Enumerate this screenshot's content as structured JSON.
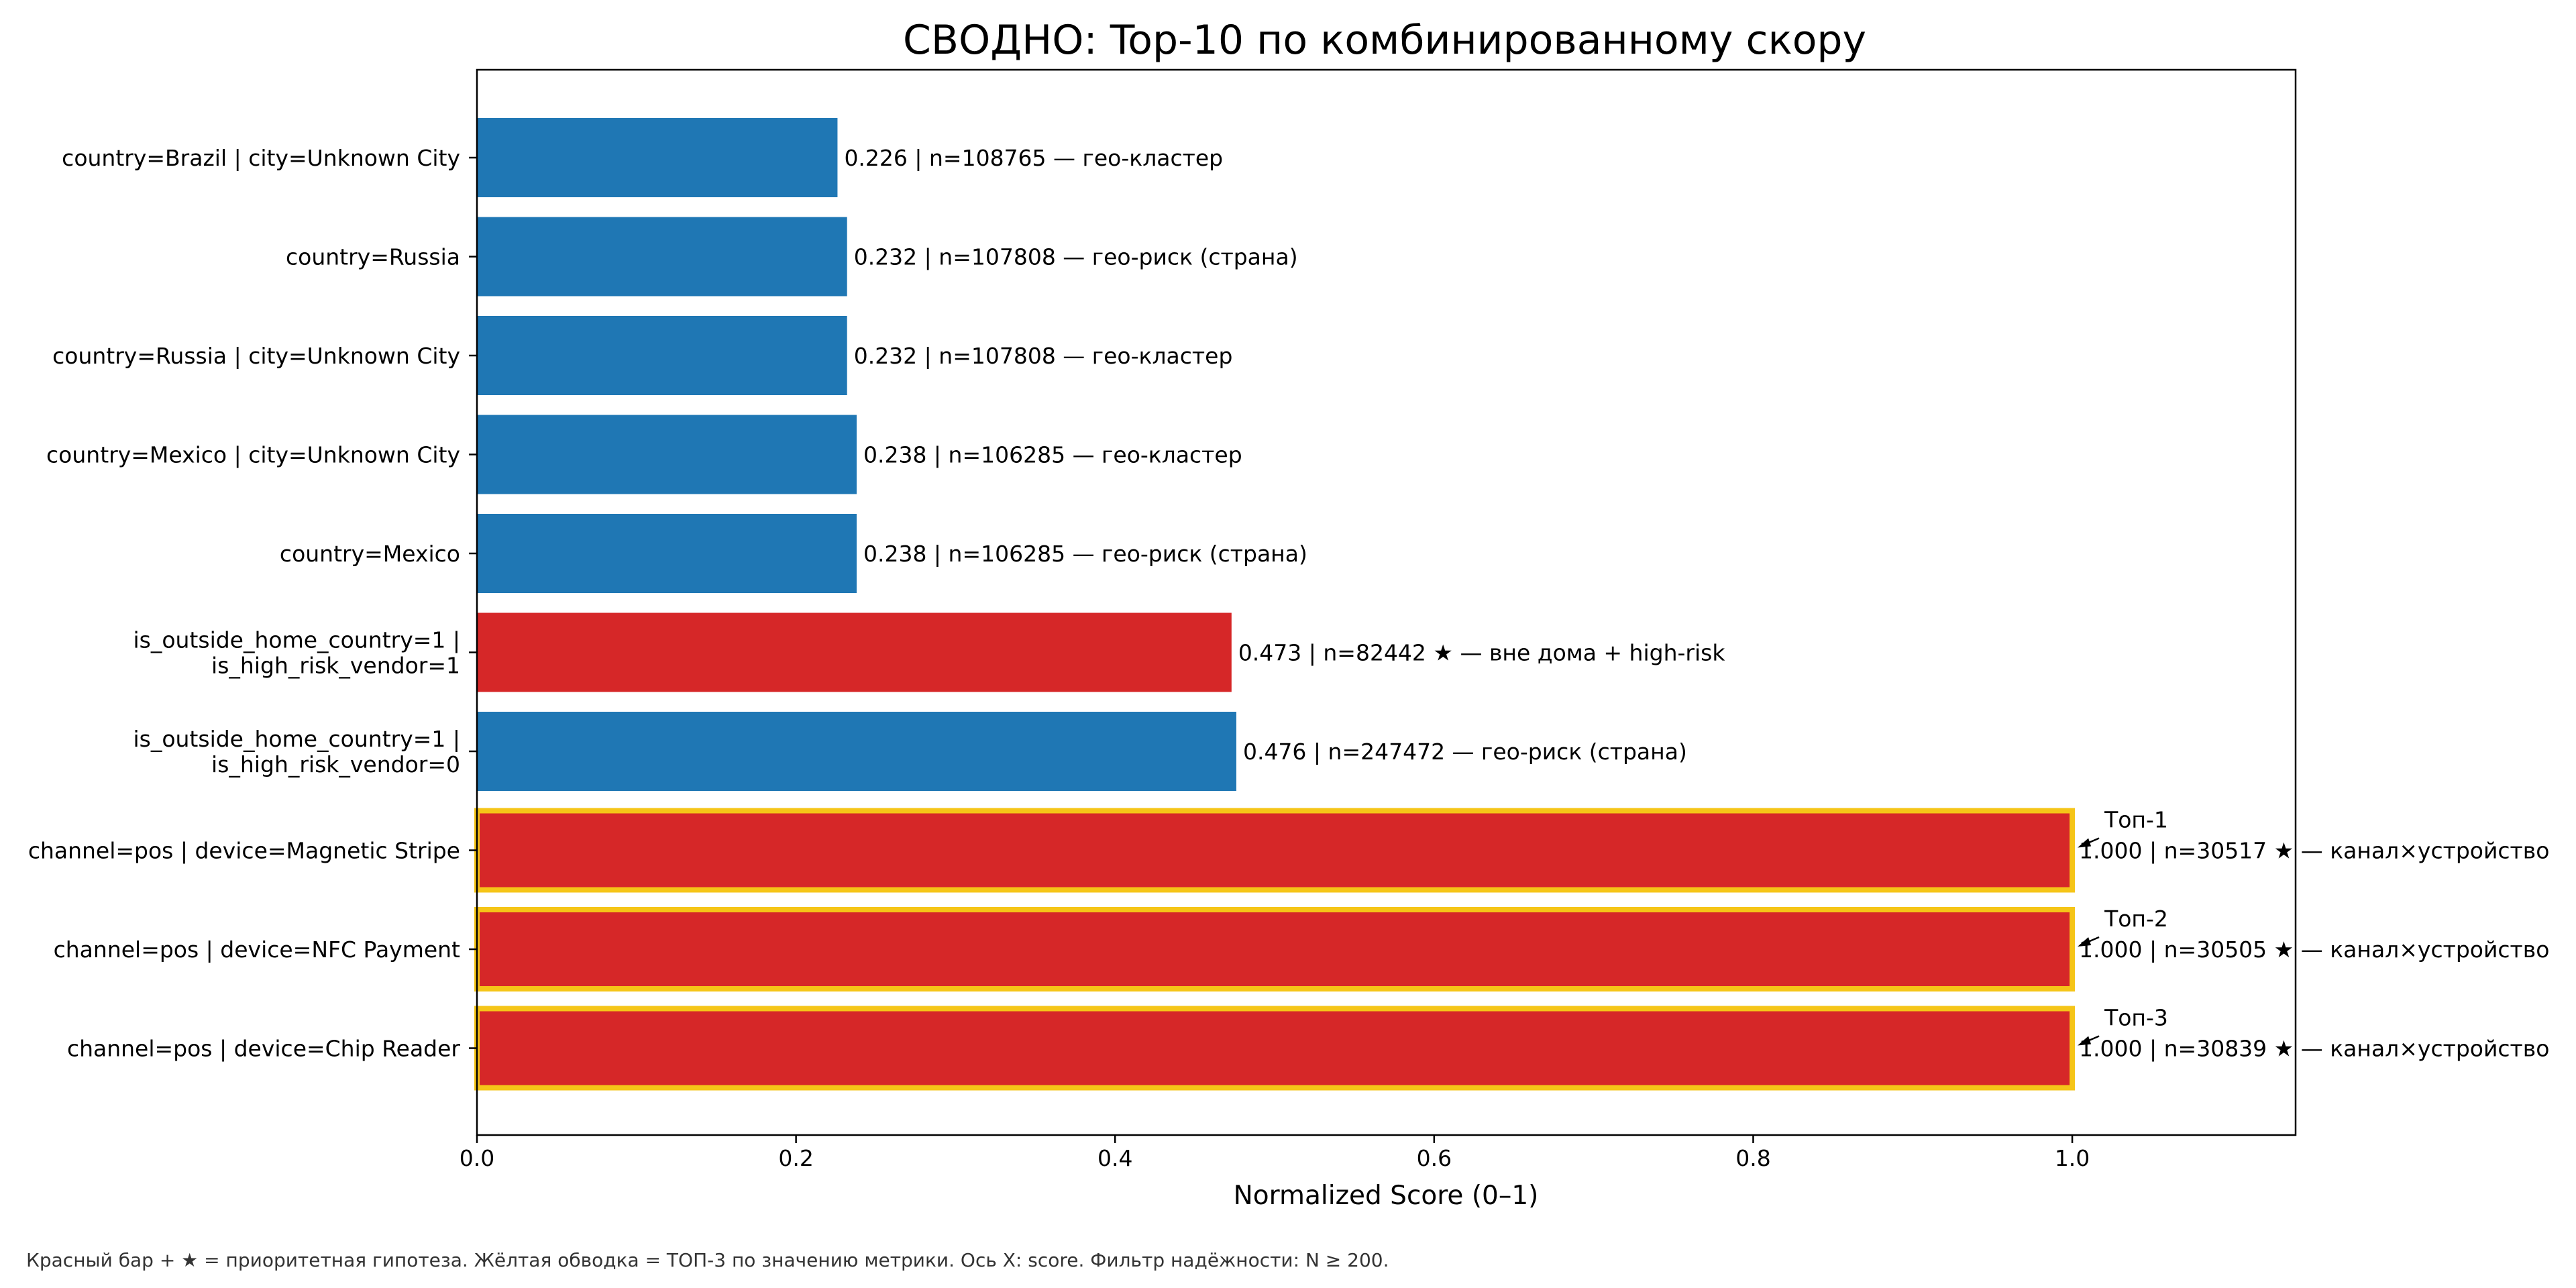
{
  "chart_data": {
    "type": "bar",
    "orientation": "horizontal",
    "title": "СВОДНО: Top-10 по комбинированному скору",
    "xlabel": "Normalized Score (0–1)",
    "ylabel": "",
    "xlim": [
      0,
      1.14
    ],
    "xticks": [
      "0.0",
      "0.2",
      "0.4",
      "0.6",
      "0.8",
      "1.0"
    ],
    "grid": false,
    "legend": "none",
    "colors": {
      "priority": "#d62728",
      "normal": "#1f77b4",
      "top3_outline": "#f5c518"
    },
    "categories": [
      "country=Brazil | city=Unknown City",
      "country=Russia",
      "country=Russia | city=Unknown City",
      "country=Mexico | city=Unknown City",
      "country=Mexico",
      "is_outside_home_country=1 |\nis_high_risk_vendor=1",
      "is_outside_home_country=1 |\nis_high_risk_vendor=0",
      "channel=pos | device=Magnetic Stripe",
      "channel=pos | device=NFC Payment",
      "channel=pos | device=Chip Reader"
    ],
    "values": [
      0.226,
      0.232,
      0.232,
      0.238,
      0.238,
      0.473,
      0.476,
      1.0,
      1.0,
      1.0
    ],
    "n": [
      108765,
      107808,
      107808,
      106285,
      106285,
      82442,
      247472,
      30517,
      30505,
      30839
    ],
    "priority": [
      false,
      false,
      false,
      false,
      false,
      true,
      false,
      true,
      true,
      true
    ],
    "top3": [
      false,
      false,
      false,
      false,
      false,
      false,
      false,
      true,
      true,
      true
    ],
    "data_labels": [
      "0.226 | n=108765  —  гео-кластер",
      "0.232 | n=107808  —  гео-риск (страна)",
      "0.232 | n=107808  —  гео-кластер",
      "0.238 | n=106285  —  гео-кластер",
      "0.238 | n=106285  —  гео-риск (страна)",
      "0.473 | n=82442  ★  —  вне дома + high-risk",
      "0.476 | n=247472  —  гео-риск (страна)",
      "1.000 | n=30517  ★  —  канал×устройство",
      "1.000 | n=30505  ★  —  канал×устройство",
      "1.000 | n=30839  ★  —  канал×устройство"
    ],
    "annotations": [
      "",
      "",
      "",
      "",
      "",
      "",
      "",
      "Топ-1",
      "Топ-2",
      "Топ-3"
    ]
  },
  "footnote": "Красный бар + ★ = приоритетная гипотеза.  Жёлтая обводка = ТОП-3 по значению метрики.  Ось X: score.  Фильтр надёжности: N ≥ 200."
}
